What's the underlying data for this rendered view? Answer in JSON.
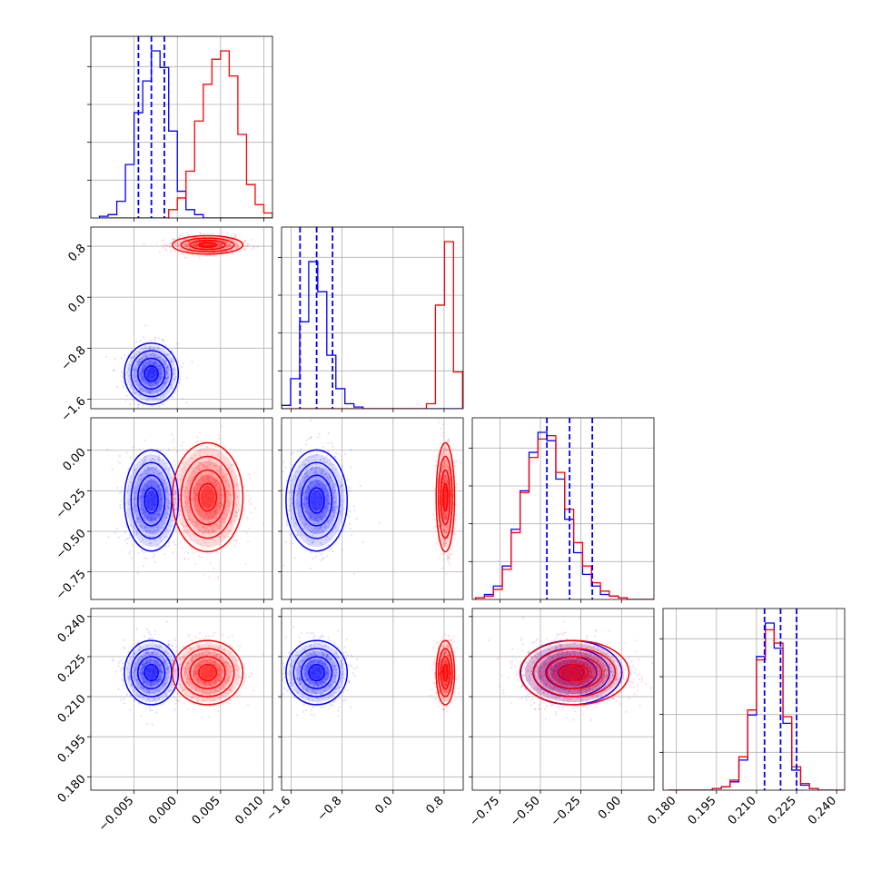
{
  "colors": {
    "series_a": "#0000ff",
    "series_b": "#ff0000",
    "grid": "#b0b0b0"
  },
  "chart_data": {
    "type": "corner",
    "title": "",
    "parameters": [
      {
        "index": 0,
        "range": [
          -0.01,
          0.011
        ],
        "ticks": [
          -0.005,
          0.0,
          0.005,
          0.01
        ],
        "tick_labels": [
          "−0.005",
          "0.000",
          "0.005",
          "0.010"
        ]
      },
      {
        "index": 1,
        "range": [
          -1.75,
          1.1
        ],
        "ticks": [
          -1.6,
          -0.8,
          0.0,
          0.8
        ],
        "tick_labels": [
          "−1.6",
          "−0.8",
          "0.0",
          "0.8"
        ]
      },
      {
        "index": 2,
        "range": [
          -0.92,
          0.2
        ],
        "ticks": [
          -0.75,
          -0.5,
          -0.25,
          0.0
        ],
        "tick_labels": [
          "−0.75",
          "−0.50",
          "−0.25",
          "0.00"
        ]
      },
      {
        "index": 3,
        "range": [
          0.175,
          0.243
        ],
        "ticks": [
          0.18,
          0.195,
          0.21,
          0.225,
          0.24
        ],
        "tick_labels": [
          "0.180",
          "0.195",
          "0.210",
          "0.225",
          "0.240"
        ]
      }
    ],
    "series": [
      {
        "name": "blue",
        "color": "#0000ff",
        "mean": [
          -0.003,
          -1.2,
          -0.31,
          0.219
        ],
        "std": [
          0.0013,
          0.2,
          0.13,
          0.005
        ],
        "quantiles": [
          [
            -0.0045,
            -0.003,
            -0.0015
          ],
          [
            -1.46,
            -1.2,
            -0.95
          ],
          [
            -0.46,
            -0.32,
            -0.18
          ],
          [
            0.213,
            0.219,
            0.225
          ]
        ]
      },
      {
        "name": "red",
        "color": "#ff0000",
        "mean": [
          0.0035,
          0.82,
          -0.29,
          0.219
        ],
        "std": [
          0.0017,
          0.06,
          0.14,
          0.005
        ],
        "quantiles": []
      }
    ],
    "histograms": [
      {
        "param": 0,
        "bin_edges_start": -0.009,
        "bin_width": 0.001,
        "blue": [
          1,
          2,
          10,
          32,
          63,
          82,
          100,
          90,
          52,
          16,
          5,
          2,
          0,
          0,
          0,
          0,
          0,
          0,
          0,
          0
        ],
        "red": [
          0,
          0,
          0,
          0,
          0,
          0,
          0,
          0,
          5,
          12,
          28,
          58,
          80,
          95,
          100,
          85,
          50,
          20,
          8,
          3
        ]
      },
      {
        "param": 1,
        "bin_edges_start": -1.75,
        "bin_width": 0.142,
        "blue": [
          2,
          18,
          52,
          88,
          70,
          32,
          12,
          3,
          1,
          0,
          0,
          0,
          0,
          0,
          0,
          0,
          0,
          0,
          0,
          0
        ],
        "red": [
          0,
          0,
          0,
          0,
          0,
          0,
          0,
          0,
          0,
          0,
          0,
          0,
          0,
          0,
          0,
          0,
          3,
          62,
          100,
          22
        ]
      },
      {
        "param": 2,
        "bin_edges_start": -0.9,
        "bin_width": 0.055,
        "blue": [
          1,
          3,
          8,
          20,
          42,
          65,
          88,
          100,
          95,
          72,
          48,
          28,
          15,
          8,
          3,
          2,
          1,
          0,
          0,
          0
        ],
        "red": [
          1,
          2,
          6,
          18,
          40,
          64,
          85,
          96,
          98,
          76,
          54,
          34,
          20,
          10,
          5,
          2,
          1,
          0,
          0,
          0
        ]
      },
      {
        "param": 3,
        "bin_edges_start": 0.177,
        "bin_width": 0.0033,
        "blue": [
          0,
          0,
          0,
          0,
          0,
          1,
          2,
          5,
          18,
          45,
          80,
          100,
          85,
          40,
          12,
          3,
          1,
          0,
          0,
          0
        ],
        "red": [
          0,
          0,
          0,
          0,
          0,
          1,
          2,
          6,
          20,
          48,
          78,
          96,
          88,
          44,
          14,
          4,
          1,
          0,
          0,
          0
        ]
      }
    ]
  }
}
